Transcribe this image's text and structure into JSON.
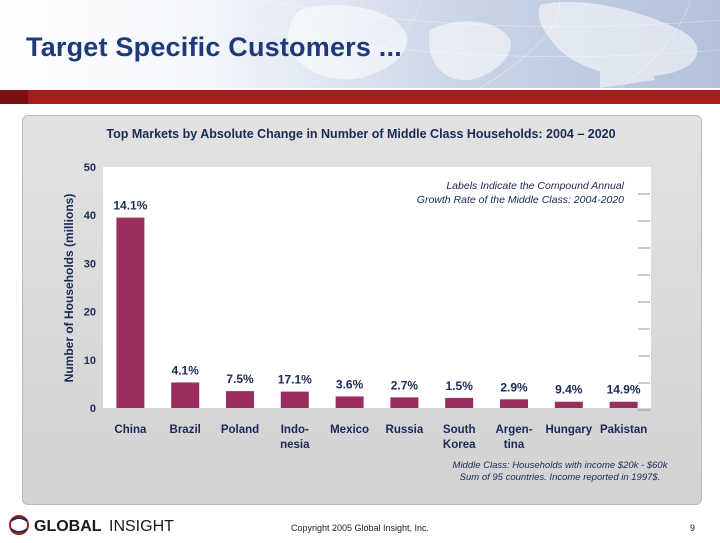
{
  "slide": {
    "title": "Target Specific Customers ...",
    "copyright": "Copyright 2005 Global Insight, Inc.",
    "page_number": "9",
    "logo_text_left": "GLOBAL",
    "logo_text_right": "INSIGHT"
  },
  "colors": {
    "bar": "#9b2d5e",
    "title": "#1f3a78",
    "red_band": "#a51d1d"
  },
  "chart_data": {
    "type": "bar",
    "title": "Top Markets by Absolute Change in Number of Middle Class Households: 2004 – 2020",
    "ylabel": "Number of Households (millions)",
    "xlabel": "",
    "ylim": [
      0,
      50
    ],
    "yticks": [
      "0",
      "10",
      "20",
      "30",
      "40",
      "50"
    ],
    "categories": [
      [
        "China"
      ],
      [
        "Brazil"
      ],
      [
        "Poland"
      ],
      [
        "Indo-",
        "nesia"
      ],
      [
        "Mexico"
      ],
      [
        "Russia"
      ],
      [
        "South",
        "Korea"
      ],
      [
        "Argen-",
        "tina"
      ],
      [
        "Hungary"
      ],
      [
        "Pakistan"
      ]
    ],
    "values": [
      39.5,
      5.3,
      3.5,
      3.4,
      2.4,
      2.2,
      2.1,
      1.8,
      1.3,
      1.3
    ],
    "data_labels": [
      "14.1%",
      "4.1%",
      "7.5%",
      "17.1%",
      "3.6%",
      "2.7%",
      "1.5%",
      "2.9%",
      "9.4%",
      "14.9%"
    ],
    "annotation": [
      "Labels Indicate the Compound Annual",
      "Growth Rate of the Middle Class: 2004-2020"
    ],
    "notes": [
      "Middle Class: Households with income $20k - $60k",
      "Sum of 95 countries.   Income reported in 1997$."
    ],
    "grid": false
  }
}
